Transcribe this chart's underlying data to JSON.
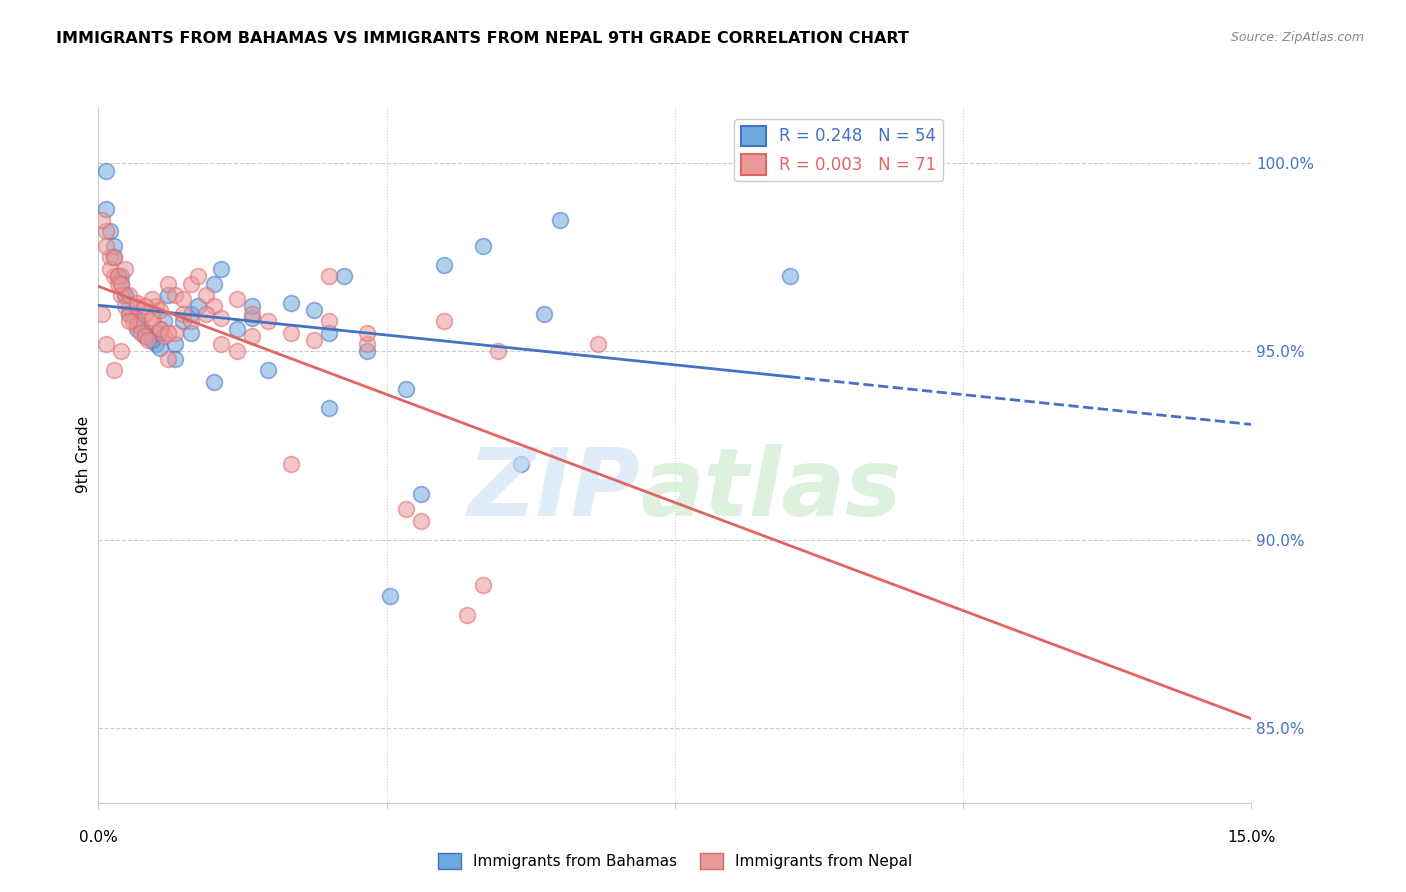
{
  "title": "IMMIGRANTS FROM BAHAMAS VS IMMIGRANTS FROM NEPAL 9TH GRADE CORRELATION CHART",
  "source": "Source: ZipAtlas.com",
  "ylabel": "9th Grade",
  "xlim": [
    0.0,
    15.0
  ],
  "ylim": [
    83.0,
    101.5
  ],
  "yticks": [
    85.0,
    90.0,
    95.0,
    100.0
  ],
  "ytick_labels": [
    "85.0%",
    "90.0%",
    "95.0%",
    "100.0%"
  ],
  "legend_r_bahamas": "0.248",
  "legend_n_bahamas": "54",
  "legend_r_nepal": "0.003",
  "legend_n_nepal": "71",
  "color_bahamas": "#6fa8dc",
  "color_nepal": "#ea9999",
  "color_line_bahamas": "#4472c4",
  "color_line_nepal": "#e06666",
  "bahamas_x": [
    0.1,
    0.15,
    0.2,
    0.25,
    0.3,
    0.35,
    0.4,
    0.45,
    0.5,
    0.55,
    0.6,
    0.65,
    0.7,
    0.75,
    0.8,
    0.85,
    0.9,
    1.0,
    1.1,
    1.2,
    1.3,
    1.5,
    1.6,
    1.8,
    2.0,
    2.2,
    2.5,
    2.8,
    3.0,
    3.2,
    3.5,
    4.0,
    4.5,
    5.0,
    5.5,
    6.0,
    0.1,
    0.2,
    0.3,
    0.35,
    0.4,
    0.5,
    0.6,
    0.7,
    0.8,
    1.0,
    1.2,
    1.5,
    2.0,
    3.0,
    3.8,
    4.2,
    5.8,
    9.0
  ],
  "bahamas_y": [
    99.8,
    98.2,
    97.5,
    97.0,
    96.8,
    96.5,
    96.2,
    96.0,
    95.8,
    95.7,
    95.5,
    95.4,
    95.3,
    95.2,
    95.5,
    95.8,
    96.5,
    95.2,
    95.8,
    96.0,
    96.2,
    96.8,
    97.2,
    95.6,
    95.9,
    94.5,
    96.3,
    96.1,
    95.5,
    97.0,
    95.0,
    94.0,
    97.3,
    97.8,
    92.0,
    98.5,
    98.8,
    97.8,
    97.0,
    96.5,
    96.0,
    95.6,
    95.4,
    95.3,
    95.1,
    94.8,
    95.5,
    94.2,
    96.2,
    93.5,
    88.5,
    91.2,
    96.0,
    97.0
  ],
  "nepal_x": [
    0.05,
    0.1,
    0.15,
    0.2,
    0.25,
    0.3,
    0.35,
    0.4,
    0.45,
    0.5,
    0.55,
    0.6,
    0.65,
    0.7,
    0.75,
    0.8,
    0.85,
    0.9,
    1.0,
    1.1,
    1.2,
    1.3,
    1.4,
    1.5,
    1.6,
    1.8,
    2.0,
    2.2,
    2.5,
    2.8,
    3.0,
    3.5,
    4.0,
    4.5,
    5.0,
    0.1,
    0.2,
    0.3,
    0.4,
    0.5,
    0.6,
    0.7,
    0.8,
    0.9,
    1.0,
    1.2,
    1.4,
    1.6,
    1.8,
    2.0,
    2.5,
    3.0,
    3.5,
    4.2,
    4.8,
    5.2,
    6.5,
    0.05,
    0.1,
    0.15,
    0.2,
    0.25,
    0.3,
    0.35,
    0.4,
    0.5,
    0.6,
    0.7,
    0.8,
    0.9,
    1.1
  ],
  "nepal_y": [
    96.0,
    98.2,
    97.5,
    97.0,
    96.8,
    96.5,
    96.2,
    96.0,
    95.8,
    95.7,
    95.5,
    95.4,
    95.3,
    95.8,
    96.2,
    95.6,
    95.4,
    96.8,
    96.5,
    96.0,
    96.8,
    97.0,
    96.5,
    96.2,
    95.9,
    96.4,
    96.0,
    95.8,
    95.5,
    95.3,
    97.0,
    95.2,
    90.8,
    95.8,
    88.8,
    95.2,
    94.5,
    95.0,
    95.8,
    96.2,
    96.0,
    96.4,
    95.6,
    94.8,
    95.5,
    95.8,
    96.0,
    95.2,
    95.0,
    95.4,
    92.0,
    95.8,
    95.5,
    90.5,
    88.0,
    95.0,
    95.2,
    98.5,
    97.8,
    97.2,
    97.5,
    97.0,
    96.8,
    97.2,
    96.5,
    96.3,
    96.2,
    95.9,
    96.1,
    95.5,
    96.4
  ]
}
